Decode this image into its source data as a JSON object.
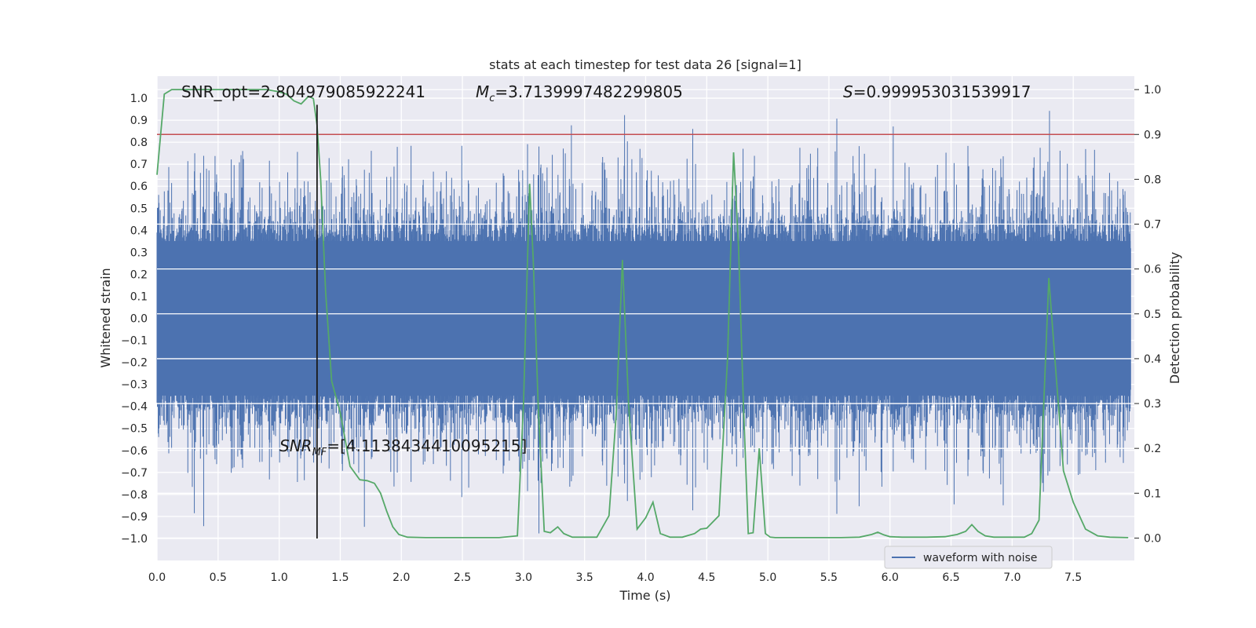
{
  "chart_data": {
    "type": "line",
    "title": "stats at each timestep for test data 26 [signal=1]",
    "xlabel": "Time (s)",
    "ylabel_left": "Whitened strain",
    "ylabel_right": "Detection probability",
    "xlim": [
      0.0,
      8.0
    ],
    "ylim_left": [
      -1.1,
      1.1
    ],
    "ylim_right": [
      -0.05,
      1.03
    ],
    "x_ticks": [
      "0.0",
      "0.5",
      "1.0",
      "1.5",
      "2.0",
      "2.5",
      "3.0",
      "3.5",
      "4.0",
      "4.5",
      "5.0",
      "5.5",
      "6.0",
      "6.5",
      "7.0",
      "7.5"
    ],
    "y_ticks_left": [
      "1.0",
      "0.9",
      "0.8",
      "0.7",
      "0.6",
      "0.5",
      "0.4",
      "0.3",
      "0.2",
      "0.1",
      "0.0",
      "−0.1",
      "−0.2",
      "−0.3",
      "−0.4",
      "−0.5",
      "−0.6",
      "−0.7",
      "−0.8",
      "−0.9",
      "−1.0"
    ],
    "y_ticks_right": [
      "1.0",
      "0.9",
      "0.8",
      "0.7",
      "0.6",
      "0.5",
      "0.4",
      "0.3",
      "0.2",
      "0.1",
      "0.0"
    ],
    "grid": true,
    "legend_position": "bottom-right",
    "series": [
      {
        "name": "waveform with noise",
        "axis": "left",
        "color": "#4c72b0",
        "kind": "noise-envelope",
        "typical_amplitude": 0.45,
        "peak_amplitude": 1.0
      },
      {
        "axis": "right",
        "color": "#55a868",
        "x": [
          0.0,
          0.06,
          0.12,
          0.2,
          0.3,
          0.5,
          0.7,
          0.9,
          1.0,
          1.06,
          1.12,
          1.18,
          1.24,
          1.28,
          1.31,
          1.34,
          1.38,
          1.43,
          1.5,
          1.58,
          1.66,
          1.72,
          1.78,
          1.83,
          1.88,
          1.93,
          1.98,
          2.05,
          2.2,
          2.4,
          2.6,
          2.8,
          2.95,
          3.0,
          3.05,
          3.08,
          3.12,
          3.17,
          3.22,
          3.28,
          3.33,
          3.4,
          3.5,
          3.6,
          3.7,
          3.76,
          3.81,
          3.86,
          3.93,
          4.0,
          4.06,
          4.12,
          4.2,
          4.3,
          4.4,
          4.45,
          4.5,
          4.6,
          4.67,
          4.72,
          4.76,
          4.8,
          4.84,
          4.88,
          4.93,
          4.98,
          5.02,
          5.06,
          5.1,
          5.14,
          5.2,
          5.3,
          5.6,
          5.75,
          5.85,
          5.9,
          5.95,
          6.0,
          6.1,
          6.3,
          6.45,
          6.55,
          6.62,
          6.67,
          6.72,
          6.78,
          6.85,
          7.0,
          7.1,
          7.16,
          7.22,
          7.3,
          7.35,
          7.42,
          7.5,
          7.6,
          7.7,
          7.8,
          7.95
        ],
        "y": [
          0.81,
          0.99,
          1.0,
          1.0,
          1.0,
          1.0,
          1.0,
          1.0,
          0.995,
          0.99,
          0.975,
          0.968,
          0.985,
          0.98,
          0.92,
          0.8,
          0.55,
          0.35,
          0.28,
          0.16,
          0.13,
          0.128,
          0.122,
          0.1,
          0.06,
          0.025,
          0.008,
          0.002,
          0.001,
          0.001,
          0.001,
          0.001,
          0.005,
          0.3,
          0.79,
          0.62,
          0.3,
          0.015,
          0.012,
          0.025,
          0.01,
          0.002,
          0.002,
          0.002,
          0.05,
          0.28,
          0.62,
          0.3,
          0.02,
          0.045,
          0.08,
          0.01,
          0.002,
          0.002,
          0.01,
          0.02,
          0.022,
          0.05,
          0.4,
          0.86,
          0.65,
          0.3,
          0.01,
          0.012,
          0.2,
          0.01,
          0.002,
          0.001,
          0.001,
          0.001,
          0.001,
          0.001,
          0.001,
          0.002,
          0.008,
          0.013,
          0.007,
          0.003,
          0.002,
          0.002,
          0.003,
          0.008,
          0.015,
          0.03,
          0.015,
          0.005,
          0.002,
          0.002,
          0.002,
          0.01,
          0.04,
          0.58,
          0.4,
          0.15,
          0.08,
          0.02,
          0.005,
          0.002,
          0.001
        ]
      },
      {
        "axis": "right",
        "color": "#c44e52",
        "kind": "horizontal-line",
        "value": 0.9
      },
      {
        "axis": "left",
        "color": "#1a1a1a",
        "kind": "vertical-line",
        "x": 1.31,
        "y_from": -1.0,
        "y_to": 0.97
      }
    ],
    "annotations": [
      {
        "text": "SNR_opt=2.804979085922241",
        "x": 0.2,
        "y": 1.0,
        "axis": "left",
        "italic_prefix": ""
      },
      {
        "text": "=3.7139997482299805",
        "prefix": "M",
        "sub": "c",
        "x": 2.6,
        "y": 1.0,
        "axis": "left"
      },
      {
        "text": "=0.999953031539917",
        "prefix": "S",
        "sub": "",
        "x": 5.95,
        "y": 1.0,
        "axis": "left"
      },
      {
        "text": "=[4.113843441009521​5]",
        "prefix": "SNR",
        "sub": "MF",
        "x": 1.0,
        "y": -0.57,
        "axis": "left"
      }
    ],
    "annotation_texts": {
      "snr_opt": "SNR_opt=2.804979085922241",
      "mc": "=3.7139997482299805",
      "s": "=0.999953031539917",
      "snr_mf": "=[4.1138434410095215]"
    }
  }
}
